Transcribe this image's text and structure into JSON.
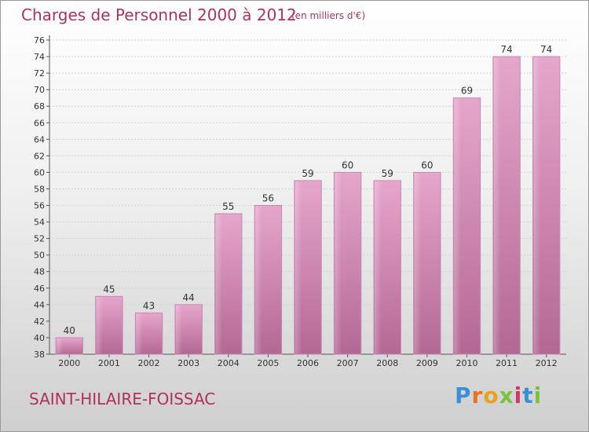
{
  "title": "Charges de Personnel 2000 à 2012",
  "subtitle": "(en milliers d'€)",
  "commune": "SAINT-HILAIRE-FOISSAC",
  "logo": {
    "letters": [
      "P",
      "r",
      "o",
      "x",
      "i",
      "t",
      "i"
    ],
    "colors": [
      "#3a8fd6",
      "#e8731c",
      "#e8a21c",
      "#7cc242",
      "#d6336c",
      "#3a8fd6",
      "#7cc242"
    ]
  },
  "colors": {
    "bar": "#d98cba",
    "bar_dark": "#b0608f",
    "label": "#333333",
    "accent": "#b03060"
  },
  "chart_data": {
    "type": "bar",
    "categories": [
      "2000",
      "2001",
      "2002",
      "2003",
      "2004",
      "2005",
      "2006",
      "2007",
      "2008",
      "2009",
      "2010",
      "2011",
      "2012"
    ],
    "values": [
      40,
      45,
      43,
      44,
      55,
      56,
      59,
      60,
      59,
      60,
      69,
      74,
      74
    ],
    "data_labels": [
      "40",
      "45",
      "43",
      "44",
      "55",
      "56",
      "59",
      "60",
      "59",
      "60",
      "69",
      "74",
      "74"
    ],
    "title": "Charges de Personnel 2000 à 2012",
    "subtitle": "(en milliers d'€)",
    "xlabel": "",
    "ylabel": "",
    "ylim": [
      38,
      76
    ],
    "yticks": [
      38,
      40,
      42,
      44,
      46,
      48,
      50,
      52,
      54,
      56,
      58,
      60,
      62,
      64,
      66,
      68,
      70,
      72,
      74,
      76
    ],
    "ytick_labels": [
      "38",
      "40",
      "42",
      "44",
      "46",
      "48",
      "50",
      "52",
      "54",
      "56",
      "58",
      "60",
      "62",
      "64",
      "66",
      "68",
      "70",
      "72",
      "74",
      "76"
    ],
    "grid": true,
    "legend": "none"
  }
}
